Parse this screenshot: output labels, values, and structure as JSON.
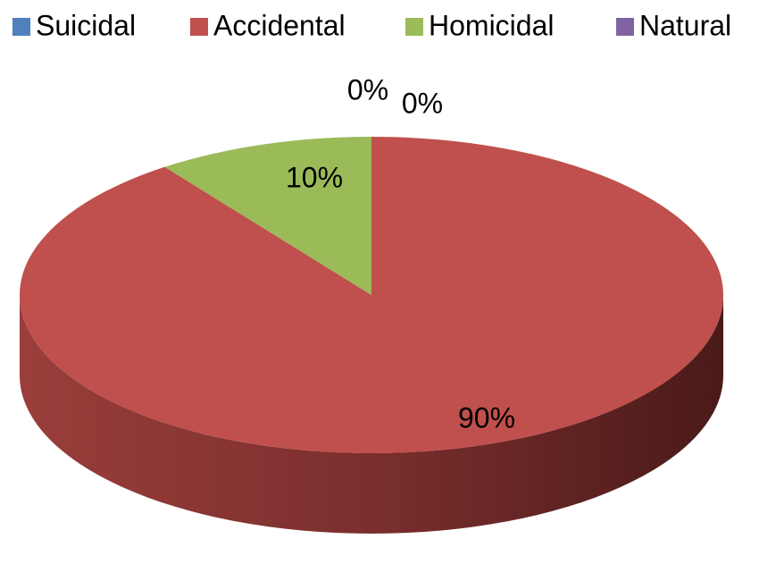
{
  "chart_data": {
    "type": "pie",
    "categories": [
      "Suicidal",
      "Accidental",
      "Homicidal",
      "Natural"
    ],
    "values": [
      0,
      90,
      10,
      0
    ],
    "value_labels": [
      "0%",
      "90%",
      "10%",
      "0%"
    ],
    "colors": [
      "#4f81bd",
      "#c0504d",
      "#9bbb59",
      "#8064a2"
    ],
    "legend": "top"
  }
}
